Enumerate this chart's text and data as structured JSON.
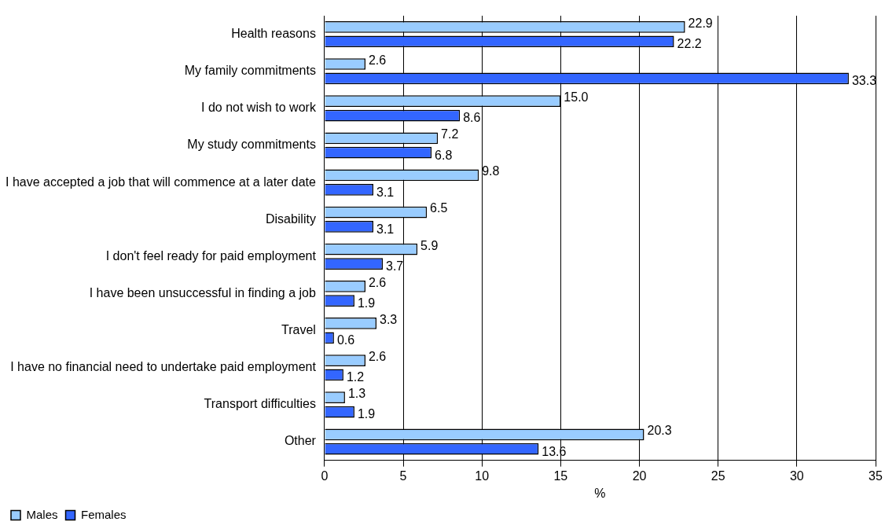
{
  "chart_data": {
    "type": "bar",
    "orientation": "horizontal",
    "xlabel": "%",
    "categories": [
      "Health reasons",
      "My family commitments",
      "I do not wish to work",
      "My study commitments",
      "I have accepted a job that will commence at a later date",
      "Disability",
      "I don't feel ready for paid employment",
      "I have been unsuccessful in finding a job",
      "Travel",
      "I have no financial need to undertake paid employment",
      "Transport difficulties",
      "Other"
    ],
    "series": [
      {
        "name": "Males",
        "color": "#99ccff",
        "values": [
          22.9,
          2.6,
          15.0,
          7.2,
          9.8,
          6.5,
          5.9,
          2.6,
          3.3,
          2.6,
          1.3,
          20.3
        ],
        "value_labels": [
          "22.9",
          "2.6",
          "15.0",
          "7.2",
          "9.8",
          "6.5",
          "5.9",
          "2.6",
          "3.3",
          "2.6",
          "1.3",
          "20.3"
        ]
      },
      {
        "name": "Females",
        "color": "#3366ff",
        "values": [
          22.2,
          33.3,
          8.6,
          6.8,
          3.1,
          3.1,
          3.7,
          1.9,
          0.6,
          1.2,
          1.9,
          13.6
        ],
        "value_labels": [
          "22.2",
          "33.3",
          "8.6",
          "6.8",
          "3.1",
          "3.1",
          "3.7",
          "1.9",
          "0.6",
          "1.2",
          "1.9",
          "13.6"
        ]
      }
    ],
    "xlim": [
      0,
      35
    ],
    "xticks": [
      0,
      5,
      10,
      15,
      20,
      25,
      30,
      35
    ],
    "grid": "x",
    "legend": "bottom left"
  }
}
